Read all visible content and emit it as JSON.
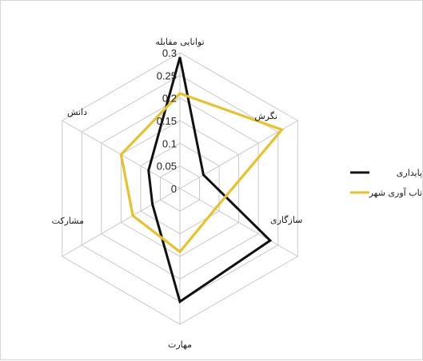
{
  "chart_data": {
    "type": "radar",
    "axes": [
      "توانایی مقابله",
      "نگرش",
      "سازگاری",
      "مهارت",
      "مشارکت",
      "دانش"
    ],
    "ticks": [
      "0",
      "0.05",
      "0.1",
      "0.15",
      "0.2",
      "0.25",
      "0.3"
    ],
    "range": [
      0,
      0.3
    ],
    "grid": true,
    "legend_position": "right",
    "series": [
      {
        "name": "پایداری",
        "color": "#111111",
        "values": [
          0.29,
          0.06,
          0.23,
          0.25,
          0.07,
          0.08
        ]
      },
      {
        "name": "تاب آوری شهر",
        "color": "#e8c22a",
        "values": [
          0.21,
          0.26,
          0.09,
          0.14,
          0.12,
          0.15
        ]
      }
    ]
  }
}
